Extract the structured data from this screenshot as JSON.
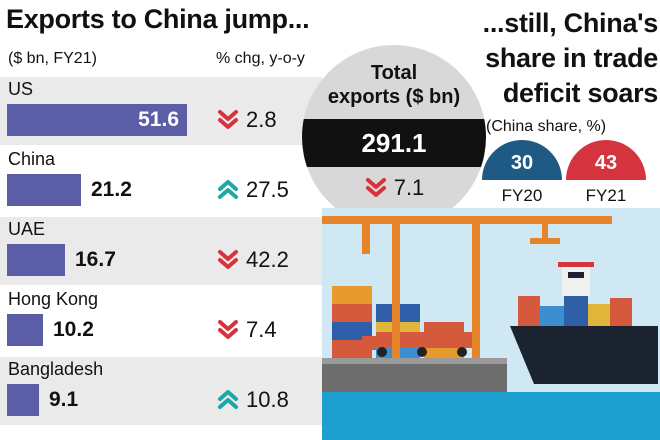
{
  "left_title": "Exports to China jump...",
  "left_subtitle": "($ bn, FY21)",
  "change_subtitle": "% chg, y-o-y",
  "right_title_lines": [
    "...still, China's",
    "share in trade",
    "deficit soars"
  ],
  "right_subtitle": "(China share, %)",
  "total": {
    "label_line1": "Total",
    "label_line2": "exports ($ bn)",
    "value": "291.1",
    "change": "7.1",
    "direction": "down"
  },
  "colors": {
    "bar": "#5b5ea6",
    "down_arrow": "#d5333d",
    "up_arrow": "#1fa6a6",
    "fy20": "#1f5a85",
    "fy21": "#d5333d"
  },
  "chart_data": [
    {
      "type": "bar",
      "title": "Exports to China jump...",
      "unit": "($ bn, FY21)",
      "categories": [
        "US",
        "China",
        "UAE",
        "Hong Kong",
        "Bangladesh"
      ],
      "values": [
        51.6,
        21.2,
        16.7,
        10.2,
        9.1
      ],
      "value_labels": [
        "51.6",
        "21.2",
        "16.7",
        "10.2",
        "9.1"
      ],
      "change_label": "% chg, y-o-y",
      "changes": [
        {
          "value": "2.8",
          "direction": "down"
        },
        {
          "value": "27.5",
          "direction": "up"
        },
        {
          "value": "42.2",
          "direction": "down"
        },
        {
          "value": "7.4",
          "direction": "down"
        },
        {
          "value": "10.8",
          "direction": "up"
        }
      ]
    },
    {
      "type": "pie",
      "title": "...still, China's share in trade deficit soars",
      "subtitle": "(China share, %)",
      "categories": [
        "FY20",
        "FY21"
      ],
      "values": [
        30,
        43
      ],
      "value_labels": [
        "30",
        "43"
      ]
    }
  ]
}
